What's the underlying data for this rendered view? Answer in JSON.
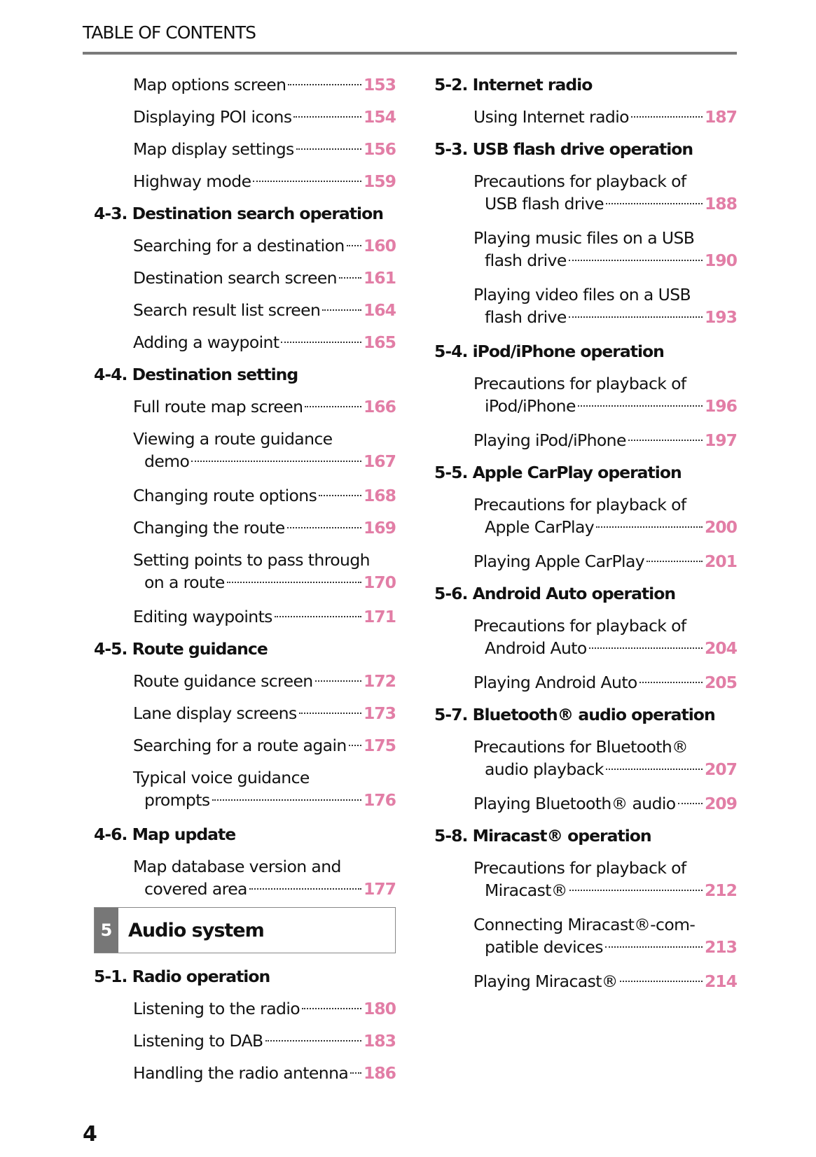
{
  "header": {
    "title": "TABLE OF CONTENTS"
  },
  "page_number": "4",
  "accent_color": "#e27ea6",
  "left": [
    {
      "type": "entry",
      "text": "Map options screen",
      "page": "153"
    },
    {
      "type": "entry",
      "text": "Displaying POI icons",
      "page": "154"
    },
    {
      "type": "entry",
      "text": "Map display settings",
      "page": "156"
    },
    {
      "type": "entry",
      "text": "Highway mode",
      "page": "159"
    },
    {
      "type": "section",
      "text": "4-3. Destination search operation"
    },
    {
      "type": "entry",
      "text": "Searching for a destination",
      "page": "160"
    },
    {
      "type": "entry",
      "text": "Destination search screen",
      "page": "161"
    },
    {
      "type": "entry",
      "text": "Search result list screen",
      "page": "164"
    },
    {
      "type": "entry",
      "text": "Adding a waypoint",
      "page": "165"
    },
    {
      "type": "section",
      "text": "4-4. Destination setting"
    },
    {
      "type": "entry",
      "text": "Full route map screen",
      "page": "166"
    },
    {
      "type": "entry",
      "text": "Viewing a route guidance",
      "text2": "demo",
      "page": "167"
    },
    {
      "type": "entry",
      "text": "Changing route options",
      "page": "168"
    },
    {
      "type": "entry",
      "text": "Changing the route",
      "page": "169"
    },
    {
      "type": "entry",
      "text": "Setting points to pass through",
      "text2": "on a route",
      "page": "170"
    },
    {
      "type": "entry",
      "text": "Editing waypoints",
      "page": "171"
    },
    {
      "type": "section",
      "text": "4-5. Route guidance"
    },
    {
      "type": "entry",
      "text": "Route guidance screen",
      "page": "172"
    },
    {
      "type": "entry",
      "text": "Lane display screens",
      "page": "173"
    },
    {
      "type": "entry",
      "text": "Searching for a route again",
      "page": "175"
    },
    {
      "type": "entry",
      "text": "Typical voice guidance",
      "text2": "prompts",
      "page": "176"
    },
    {
      "type": "section",
      "text": "4-6. Map update"
    },
    {
      "type": "entry",
      "text": "Map database version and",
      "text2": "covered area",
      "page": "177"
    },
    {
      "type": "chapter",
      "num": "5",
      "text": "Audio system"
    },
    {
      "type": "section",
      "text": "5-1. Radio operation"
    },
    {
      "type": "entry",
      "text": "Listening to the radio",
      "page": "180"
    },
    {
      "type": "entry",
      "text": "Listening to DAB",
      "page": "183"
    },
    {
      "type": "entry",
      "text": "Handling the radio antenna",
      "page": "186"
    }
  ],
  "right": [
    {
      "type": "section",
      "text": "5-2. Internet radio"
    },
    {
      "type": "entry",
      "text": "Using Internet radio",
      "page": "187"
    },
    {
      "type": "section",
      "text": "5-3. USB flash drive operation"
    },
    {
      "type": "entry",
      "text": "Precautions for playback of",
      "text2": "USB flash drive",
      "page": "188"
    },
    {
      "type": "entry",
      "text": "Playing music files on a USB",
      "text2": "flash drive",
      "page": "190"
    },
    {
      "type": "entry",
      "text": "Playing video files on a USB",
      "text2": "flash drive",
      "page": "193"
    },
    {
      "type": "section",
      "text": "5-4. iPod/iPhone operation"
    },
    {
      "type": "entry",
      "text": "Precautions for playback of",
      "text2": "iPod/iPhone",
      "page": "196"
    },
    {
      "type": "entry",
      "text": "Playing iPod/iPhone",
      "page": "197"
    },
    {
      "type": "section",
      "text": "5-5. Apple CarPlay operation"
    },
    {
      "type": "entry",
      "text": "Precautions for playback of",
      "text2": "Apple CarPlay",
      "page": "200"
    },
    {
      "type": "entry",
      "text": "Playing Apple CarPlay",
      "page": "201"
    },
    {
      "type": "section",
      "text": "5-6. Android Auto operation"
    },
    {
      "type": "entry",
      "text": "Precautions for playback of",
      "text2": "Android Auto",
      "page": "204"
    },
    {
      "type": "entry",
      "text": "Playing Android Auto",
      "page": "205"
    },
    {
      "type": "section",
      "text": "5-7. Bluetooth® audio operation"
    },
    {
      "type": "entry",
      "text": "Precautions for Bluetooth®",
      "text2": "audio playback",
      "page": "207"
    },
    {
      "type": "entry",
      "text": "Playing Bluetooth® audio",
      "page": "209"
    },
    {
      "type": "section",
      "text": "5-8. Miracast® operation"
    },
    {
      "type": "entry",
      "text": "Precautions for playback of",
      "text2": "Miracast®",
      "page": "212"
    },
    {
      "type": "entry",
      "text": "Connecting Miracast®-com-",
      "text2": "patible devices",
      "page": "213"
    },
    {
      "type": "entry",
      "text": "Playing Miracast®",
      "page": "214"
    }
  ]
}
